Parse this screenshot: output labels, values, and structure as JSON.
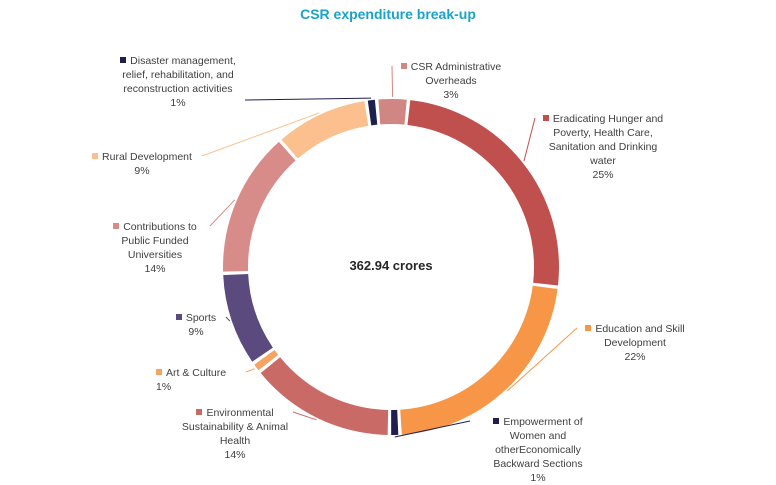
{
  "chart_data": {
    "type": "pie",
    "title": "CSR expenditure break-up",
    "center_label": "362.94 crores",
    "slices": [
      {
        "label": "Eradicating Hunger and Poverty, Health Care, Sanitation and Drinking water",
        "percent_label": "25%",
        "value": 25,
        "color": "#c0504d"
      },
      {
        "label": "Education and Skill Development",
        "percent_label": "22%",
        "value": 22,
        "color": "#f79646"
      },
      {
        "label": "Empowerment of Women and otherEconomically Backward Sections",
        "percent_label": "1%",
        "value": 1,
        "color": "#1f1f4f"
      },
      {
        "label": "Environmental Sustainability & Animal Health",
        "percent_label": "14%",
        "value": 14,
        "color": "#c96a67"
      },
      {
        "label": "Art & Culture",
        "percent_label": "1%",
        "value": 1,
        "color": "#f4a460"
      },
      {
        "label": "Sports",
        "percent_label": "9%",
        "value": 9,
        "color": "#5b4a7e"
      },
      {
        "label": "Contributions to Public Funded Universities",
        "percent_label": "14%",
        "value": 14,
        "color": "#d88c8a"
      },
      {
        "label": "Rural Development",
        "percent_label": "9%",
        "value": 9,
        "color": "#fbc08d"
      },
      {
        "label": "Disaster management, relief, rehabilitation, and reconstruction activities",
        "percent_label": "1%",
        "value": 1,
        "color": "#1f1f4f"
      },
      {
        "label": "CSR Administrative Overheads",
        "percent_label": "3%",
        "value": 3,
        "color": "#d08783"
      }
    ]
  }
}
